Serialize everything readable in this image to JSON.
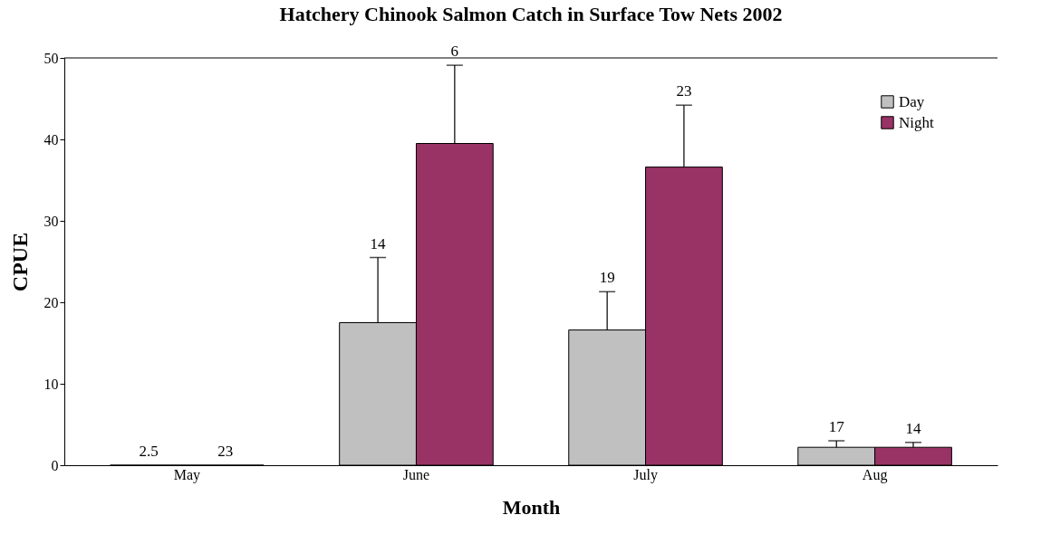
{
  "chart_data": {
    "type": "bar",
    "title": "Hatchery Chinook Salmon Catch in Surface Tow Nets 2002",
    "xlabel": "Month",
    "ylabel": "CPUE",
    "categories": [
      "May",
      "June",
      "July",
      "Aug"
    ],
    "series": [
      {
        "name": "Day",
        "color": "#c0c0c0",
        "values": [
          0,
          17.5,
          16.6,
          2.2
        ],
        "errors": [
          null,
          [
            17.5,
            25.5
          ],
          [
            16.6,
            21.3
          ],
          [
            2.2,
            3.0
          ]
        ]
      },
      {
        "name": "Night",
        "color": "#993366",
        "values": [
          0,
          39.5,
          36.6,
          2.2
        ],
        "errors": [
          null,
          [
            39.5,
            49.1
          ],
          [
            36.6,
            44.2
          ],
          [
            2.2,
            2.8
          ]
        ]
      }
    ],
    "annotations": [
      "2.5",
      "23",
      "14",
      "6",
      "19",
      "23",
      "17",
      "14"
    ],
    "ylim": [
      0,
      50
    ],
    "yticks": [
      0,
      10,
      20,
      30,
      40,
      50
    ],
    "grid": false,
    "legend": "top right"
  }
}
